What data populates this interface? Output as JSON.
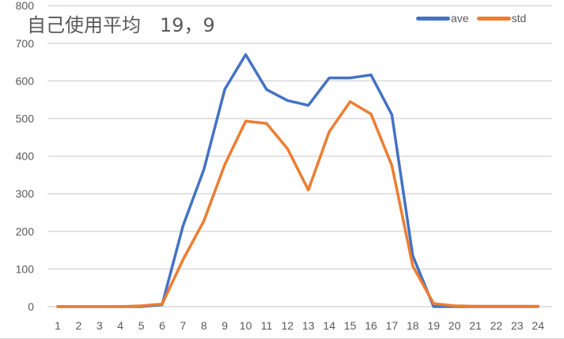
{
  "chart_data": {
    "type": "line",
    "title": "自己使用平均　19，9",
    "xlabel": "",
    "ylabel": "",
    "ylim": [
      0,
      800
    ],
    "yticks": [
      0,
      100,
      200,
      300,
      400,
      500,
      600,
      700,
      800
    ],
    "grid": true,
    "legend_position": "top-right",
    "categories": [
      "1",
      "2",
      "3",
      "4",
      "5",
      "6",
      "7",
      "8",
      "9",
      "10",
      "11",
      "12",
      "13",
      "14",
      "15",
      "16",
      "17",
      "18",
      "19",
      "20",
      "21",
      "22",
      "23",
      "24"
    ],
    "series": [
      {
        "name": "ave",
        "color": "#4472C4",
        "values": [
          0,
          0,
          0,
          0,
          0,
          5,
          215,
          365,
          578,
          670,
          577,
          548,
          535,
          608,
          608,
          616,
          510,
          135,
          0,
          0,
          0,
          0,
          0,
          0
        ]
      },
      {
        "name": "std",
        "color": "#ED7D31",
        "values": [
          0,
          0,
          0,
          0,
          2,
          7,
          125,
          228,
          378,
          493,
          487,
          420,
          310,
          465,
          545,
          512,
          375,
          108,
          8,
          2,
          1,
          1,
          1,
          1
        ]
      }
    ]
  },
  "title": "自己使用平均　19，9",
  "legend": {
    "items": [
      {
        "label": "ave",
        "color": "#4472C4"
      },
      {
        "label": "std",
        "color": "#ED7D31"
      }
    ]
  },
  "colors": {
    "grid": "#d9d9d9",
    "text": "#595959"
  }
}
